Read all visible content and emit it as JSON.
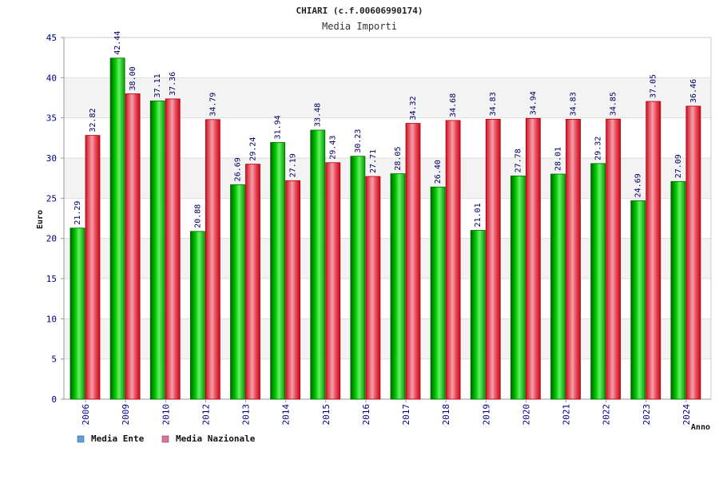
{
  "chart_data": {
    "type": "bar",
    "title": "CHIARI (c.f.00606990174)",
    "subtitle": "Media Importi",
    "xlabel": "Anno",
    "ylabel": "Euro",
    "ylim": [
      0,
      45
    ],
    "yticks": [
      0,
      5,
      10,
      15,
      20,
      25,
      30,
      35,
      40,
      45
    ],
    "grid": true,
    "legend_position": "bottom-left",
    "categories": [
      "2006",
      "2009",
      "2010",
      "2012",
      "2013",
      "2014",
      "2015",
      "2016",
      "2017",
      "2018",
      "2019",
      "2020",
      "2021",
      "2022",
      "2023",
      "2024"
    ],
    "series": [
      {
        "name": "Media Ente",
        "color": "#00aa00",
        "legend_color": "#5aa0e6",
        "values": [
          21.29,
          42.44,
          37.11,
          20.88,
          26.69,
          31.94,
          33.48,
          30.23,
          28.05,
          26.4,
          21.01,
          27.78,
          28.01,
          29.32,
          24.69,
          27.09
        ],
        "labels": [
          "21.29",
          "42.44",
          "37.11",
          "20.88",
          "26.69",
          "31.94",
          "33.48",
          "30.23",
          "28.05",
          "26.40",
          "21.01",
          "27.78",
          "28.01",
          "29.32",
          "24.69",
          "27.09"
        ]
      },
      {
        "name": "Media Nazionale",
        "color": "#e0202e",
        "legend_color": "#e070a0",
        "values": [
          32.82,
          38.0,
          37.36,
          34.79,
          29.24,
          27.19,
          29.43,
          27.71,
          34.32,
          34.68,
          34.83,
          34.94,
          34.83,
          34.85,
          37.05,
          36.46
        ],
        "labels": [
          "32.82",
          "38.00",
          "37.36",
          "34.79",
          "29.24",
          "27.19",
          "29.43",
          "27.71",
          "34.32",
          "34.68",
          "34.83",
          "34.94",
          "34.83",
          "34.85",
          "37.05",
          "36.46"
        ]
      }
    ]
  }
}
